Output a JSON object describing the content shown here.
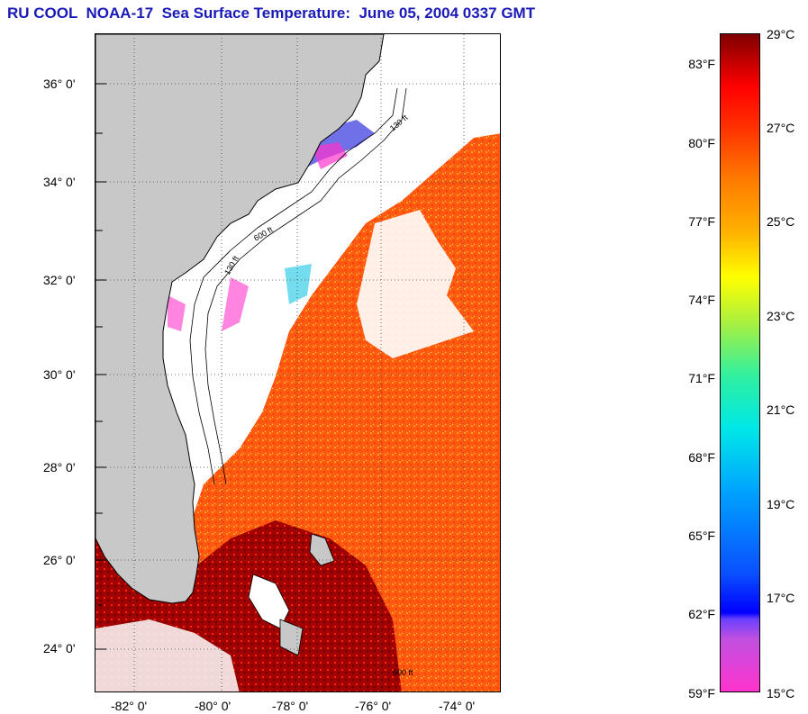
{
  "title": "RU COOL  NOAA-17  Sea Surface Temperature:  June 05, 2004 0337 GMT",
  "map": {
    "lat_labels": [
      "36° 0'",
      "34° 0'",
      "32° 0'",
      "30° 0'",
      "28° 0'",
      "26° 0'",
      "24° 0'"
    ],
    "lon_labels": [
      "-82° 0'",
      "-80° 0'",
      "-78° 0'",
      "-76° 0'",
      "-74° 0'"
    ],
    "bathymetry_labels": [
      "130 ft",
      "600 ft",
      "130 ft",
      "600 ft"
    ],
    "colors": {
      "land": "#c8c8c8",
      "cloud": "#ffffff",
      "warm_water": "#ff5a10",
      "hot_water": "#8b0000"
    }
  },
  "colorbar": {
    "fahrenheit_labels": [
      "83°F",
      "80°F",
      "77°F",
      "74°F",
      "71°F",
      "68°F",
      "65°F",
      "62°F",
      "59°F"
    ],
    "celsius_labels": [
      "29°C",
      "27°C",
      "25°C",
      "23°C",
      "21°C",
      "19°C",
      "17°C",
      "15°C"
    ]
  }
}
